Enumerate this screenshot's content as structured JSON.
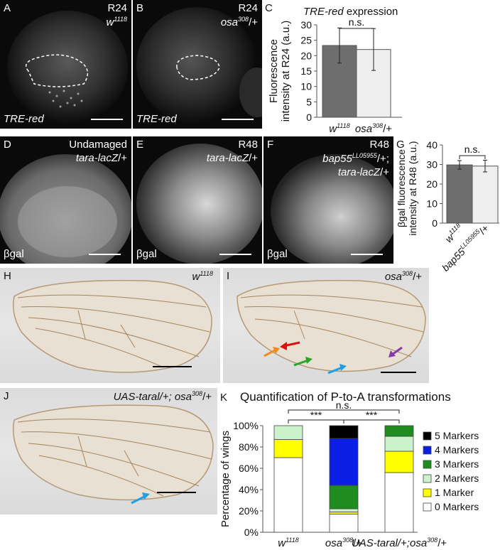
{
  "panelA": {
    "letter": "A",
    "stage": "R24",
    "genotype": "w",
    "genotype_sup": "1118",
    "marker": "TRE-red"
  },
  "panelB": {
    "letter": "B",
    "stage": "R24",
    "genotype": "osa",
    "genotype_sup": "308",
    "genotype_suffix": "/+",
    "marker": "TRE-red"
  },
  "panelC": {
    "letter": "C"
  },
  "panelD": {
    "letter": "D",
    "stage": "Undamaged",
    "genotype": "tara-lacZ",
    "genotype_suffix": "/+",
    "marker": "βgal"
  },
  "panelE": {
    "letter": "E",
    "stage": "R48",
    "genotype": "tara-lacZ",
    "genotype_suffix": "/+",
    "marker": "βgal"
  },
  "panelF": {
    "letter": "F",
    "stage": "R48",
    "genotype1": "bap55",
    "genotype1_sup": "LL05955",
    "genotype1_suffix": "/+;",
    "genotype2": "tara-lacZ",
    "genotype2_suffix": "/+",
    "marker": "βgal"
  },
  "panelG": {
    "letter": "G"
  },
  "panelH": {
    "letter": "H",
    "genotype": "w",
    "genotype_sup": "1118"
  },
  "panelI": {
    "letter": "I",
    "genotype": "osa",
    "genotype_sup": "308",
    "genotype_suffix": "/+"
  },
  "panelJ": {
    "letter": "J",
    "genotype": "UAS-taral/+; osa",
    "genotype_sup": "308",
    "genotype_suffix": "/+"
  },
  "panelK": {
    "letter": "K"
  },
  "chart_data": [
    {
      "type": "bar",
      "title_italic": "TRE-red",
      "title_rest": " expression",
      "ylabel_line1": "Fluorescence",
      "ylabel_line2": "intensity at R24 (a.u.)",
      "categories": [
        {
          "main": "w",
          "sup": "1118",
          "suffix": ""
        },
        {
          "main": "osa",
          "sup": "308",
          "suffix": "/+"
        }
      ],
      "values": [
        23.3,
        22.0
      ],
      "errors": [
        5.7,
        6.8
      ],
      "colors": [
        "#6e6e6e",
        "#efefef"
      ],
      "ylim": [
        0,
        30
      ],
      "yticks": [
        "0",
        "5",
        "10",
        "15",
        "20",
        "25",
        "30"
      ],
      "significance": "n.s."
    },
    {
      "type": "bar",
      "ylabel_line1": "βgal fluorescence",
      "ylabel_line2": "intensity at R48 (a.u.)",
      "categories": [
        {
          "main": "w",
          "sup": "1118",
          "suffix": ""
        },
        {
          "main": "bap55",
          "sup": "LL05955",
          "suffix": "/+"
        }
      ],
      "values": [
        29.8,
        29.2
      ],
      "errors": [
        2.2,
        3.0
      ],
      "colors": [
        "#6e6e6e",
        "#efefef"
      ],
      "ylim": [
        0,
        40
      ],
      "yticks": [
        "0",
        "10",
        "20",
        "30",
        "40"
      ],
      "significance": "n.s."
    },
    {
      "type": "bar",
      "stacked": true,
      "title": "Quantification of P-to-A transformations",
      "ylabel": "Percentage of wings",
      "categories": [
        {
          "main": "w",
          "sup": "1118",
          "suffix": ""
        },
        {
          "main": "osa",
          "sup": "308",
          "suffix": "/+"
        },
        {
          "main": "UAS-taral/+;osa",
          "sup": "308",
          "suffix": "/+"
        }
      ],
      "series": [
        {
          "name": "0 Markers",
          "color": "#ffffff",
          "values": [
            70,
            17,
            56
          ]
        },
        {
          "name": "1 Marker",
          "color": "#ffff00",
          "values": [
            17,
            2,
            20
          ]
        },
        {
          "name": "2 Markers",
          "color": "#ccf2cc",
          "values": [
            13,
            3,
            14
          ]
        },
        {
          "name": "3 Markers",
          "color": "#1e8c1e",
          "values": [
            0,
            22,
            10
          ]
        },
        {
          "name": "4 Markers",
          "color": "#0a1ee6",
          "values": [
            0,
            44,
            0
          ]
        },
        {
          "name": "5 Markers",
          "color": "#000000",
          "values": [
            0,
            12,
            0
          ]
        }
      ],
      "ylim": [
        0,
        100
      ],
      "yticks": [
        "0%",
        "20%",
        "40%",
        "60%",
        "80%",
        "100%"
      ],
      "significance": [
        "***",
        "***",
        "n.s."
      ]
    }
  ]
}
